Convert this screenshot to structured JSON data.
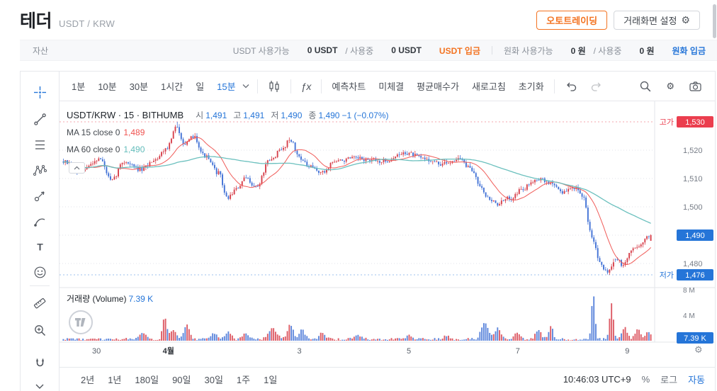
{
  "header": {
    "title": "테더",
    "symbol": "USDT / KRW",
    "autotrading_label": "오토트레이딩",
    "screen_settings_label": "거래화면 설정"
  },
  "asset_bar": {
    "label": "자산",
    "usdt_available_label": "USDT 사용가능",
    "usdt_available": "0 USDT",
    "usdt_inuse_label": "/ 사용중",
    "usdt_inuse": "0 USDT",
    "usdt_deposit_label": "USDT 입금",
    "krw_available_label": "원화 사용가능",
    "krw_available": "0 원",
    "krw_inuse_label": "/ 사용중",
    "krw_inuse": "0 원",
    "krw_deposit_label": "원화 입금"
  },
  "toolbar": {
    "intervals": [
      "1분",
      "10분",
      "30분",
      "1시간",
      "일"
    ],
    "selected_interval": "15분",
    "fx_label": "ƒx",
    "buttons": [
      "예측차트",
      "미체결",
      "평균매수가",
      "새로고침",
      "초기화"
    ]
  },
  "legend": {
    "series_title": "USDT/KRW · 15 · BITHUMB",
    "open_label": "시",
    "open": "1,491",
    "high_label": "고",
    "high": "1,491",
    "low_label": "저",
    "low": "1,490",
    "close_label": "종",
    "close": "1,490",
    "change": "−1 (−0.07%)",
    "ma15_label": "MA 15 close 0",
    "ma15_value": "1,489",
    "ma60_label": "MA 60 close 0",
    "ma60_value": "1,490"
  },
  "price_scale": {
    "high_label": "고가",
    "high_badge": "1,530",
    "ticks": [
      "1,520",
      "1,510",
      "1,500",
      "1,480"
    ],
    "current_badge": "1,490",
    "low_label": "저가",
    "low_badge": "1,476",
    "volume_ticks": [
      "8 M",
      "4 M"
    ],
    "volume_badge": "7.39 K"
  },
  "volume": {
    "label": "거래량 (Volume)",
    "value": "7.39 K"
  },
  "bottom_bar": {
    "ranges": [
      "2년",
      "1년",
      "180일",
      "90일",
      "30일",
      "1주",
      "1일"
    ],
    "clock": "10:46:03 UTC+9",
    "percent_label": "%",
    "log_label": "로그",
    "auto_label": "자동"
  },
  "colors": {
    "up": "#d7404b",
    "down": "#4272d6",
    "ma15": "#ef5350",
    "ma60": "#63bdbb",
    "accent_blue": "#2575d8",
    "accent_orange": "#f37321",
    "badge_red": "#eb3e4e"
  },
  "chart_data": {
    "type": "candlestick",
    "title": "USDT/KRW · 15 · BITHUMB",
    "exchange": "BITHUMB",
    "interval_minutes": 15,
    "visible_range": {
      "price_min": 1471,
      "price_max": 1536,
      "high": 1530,
      "low": 1476,
      "last": 1490,
      "prev_close": 1491
    },
    "last_candle": {
      "open": 1491,
      "high": 1491,
      "low": 1490,
      "close": 1490,
      "change": "−1 (−0.07%)"
    },
    "gridline_prices": [
      1520,
      1510,
      1500,
      1480
    ],
    "current_gridline": 1490,
    "candle_count": 300,
    "price_path": [
      [
        0.0,
        1516
      ],
      [
        0.026,
        1512
      ],
      [
        0.062,
        1517
      ],
      [
        0.082,
        1509
      ],
      [
        0.103,
        1516
      ],
      [
        0.133,
        1513
      ],
      [
        0.157,
        1517
      ],
      [
        0.177,
        1521
      ],
      [
        0.192,
        1528
      ],
      [
        0.208,
        1522
      ],
      [
        0.222,
        1525
      ],
      [
        0.24,
        1518
      ],
      [
        0.264,
        1512
      ],
      [
        0.279,
        1503
      ],
      [
        0.293,
        1506
      ],
      [
        0.311,
        1510
      ],
      [
        0.329,
        1507
      ],
      [
        0.35,
        1516
      ],
      [
        0.371,
        1520
      ],
      [
        0.386,
        1524
      ],
      [
        0.4,
        1518
      ],
      [
        0.418,
        1514
      ],
      [
        0.442,
        1512
      ],
      [
        0.46,
        1516
      ],
      [
        0.495,
        1517
      ],
      [
        0.543,
        1516
      ],
      [
        0.584,
        1519
      ],
      [
        0.614,
        1517
      ],
      [
        0.644,
        1515
      ],
      [
        0.673,
        1517
      ],
      [
        0.695,
        1513
      ],
      [
        0.709,
        1508
      ],
      [
        0.723,
        1503
      ],
      [
        0.739,
        1501
      ],
      [
        0.759,
        1503
      ],
      [
        0.78,
        1506
      ],
      [
        0.806,
        1510
      ],
      [
        0.834,
        1508
      ],
      [
        0.851,
        1505
      ],
      [
        0.869,
        1507
      ],
      [
        0.885,
        1503
      ],
      [
        0.899,
        1490
      ],
      [
        0.913,
        1481
      ],
      [
        0.925,
        1477
      ],
      [
        0.941,
        1482
      ],
      [
        0.952,
        1479
      ],
      [
        0.968,
        1485
      ],
      [
        0.985,
        1487
      ],
      [
        0.997,
        1490
      ],
      [
        1.0,
        1490
      ]
    ],
    "ma": [
      {
        "period": 15,
        "color_key": "ma15"
      },
      {
        "period": 60,
        "color_key": "ma60"
      }
    ],
    "volume_profile": {
      "unit": "M",
      "axis_max": 8,
      "base_noise": [
        0.06,
        0.38
      ],
      "last_volume": "7.39 K",
      "spikes": [
        {
          "f": 0.135,
          "amp": 1.1,
          "w": 2
        },
        {
          "f": 0.172,
          "amp": 3.4,
          "w": 1.5
        },
        {
          "f": 0.187,
          "amp": 1.6,
          "w": 2
        },
        {
          "f": 0.21,
          "amp": 2.2,
          "w": 2
        },
        {
          "f": 0.255,
          "amp": 1.0,
          "w": 2
        },
        {
          "f": 0.28,
          "amp": 1.3,
          "w": 2
        },
        {
          "f": 0.31,
          "amp": 0.9,
          "w": 2
        },
        {
          "f": 0.355,
          "amp": 1.7,
          "w": 3
        },
        {
          "f": 0.385,
          "amp": 2.3,
          "w": 2
        },
        {
          "f": 0.405,
          "amp": 1.5,
          "w": 2
        },
        {
          "f": 0.44,
          "amp": 1.1,
          "w": 2
        },
        {
          "f": 0.5,
          "amp": 0.5,
          "w": 3
        },
        {
          "f": 0.586,
          "amp": 0.7,
          "w": 2
        },
        {
          "f": 0.65,
          "amp": 0.6,
          "w": 2
        },
        {
          "f": 0.715,
          "amp": 2.6,
          "w": 2.5
        },
        {
          "f": 0.737,
          "amp": 1.8,
          "w": 2
        },
        {
          "f": 0.77,
          "amp": 1.1,
          "w": 2
        },
        {
          "f": 0.806,
          "amp": 1.5,
          "w": 2
        },
        {
          "f": 0.827,
          "amp": 2.1,
          "w": 1.5
        },
        {
          "f": 0.899,
          "amp": 7.2,
          "w": 1.2
        },
        {
          "f": 0.93,
          "amp": 5.6,
          "w": 1.3
        },
        {
          "f": 0.952,
          "amp": 1.8,
          "w": 2
        },
        {
          "f": 0.975,
          "amp": 1.5,
          "w": 2
        },
        {
          "f": 0.993,
          "amp": 1.2,
          "w": 2
        }
      ]
    },
    "time_labels": [
      {
        "f": 0.062,
        "label": "30",
        "bold": false
      },
      {
        "f": 0.183,
        "label": "4월",
        "bold": true
      },
      {
        "f": 0.403,
        "label": "3",
        "bold": false
      },
      {
        "f": 0.587,
        "label": "5",
        "bold": false
      },
      {
        "f": 0.77,
        "label": "7",
        "bold": false
      },
      {
        "f": 0.954,
        "label": "9",
        "bold": false
      }
    ]
  }
}
